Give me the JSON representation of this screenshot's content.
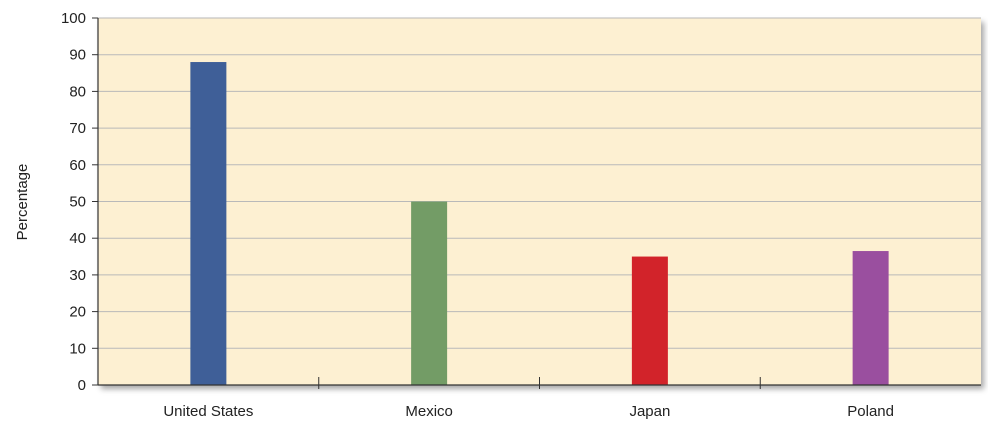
{
  "chart_data": {
    "type": "bar",
    "title": "",
    "xlabel": "",
    "ylabel": "Percentage",
    "categories": [
      "United States",
      "Mexico",
      "Japan",
      "Poland"
    ],
    "values": [
      88,
      50,
      35,
      36.5
    ],
    "colors": [
      "#3f5f98",
      "#739c66",
      "#d2232a",
      "#9a4f9f"
    ],
    "ylim": [
      0,
      100
    ],
    "yticks": [
      0,
      10,
      20,
      30,
      40,
      50,
      60,
      70,
      80,
      90,
      100
    ],
    "grid": true,
    "legend": "none",
    "plot_background": "#fdf0d2"
  }
}
